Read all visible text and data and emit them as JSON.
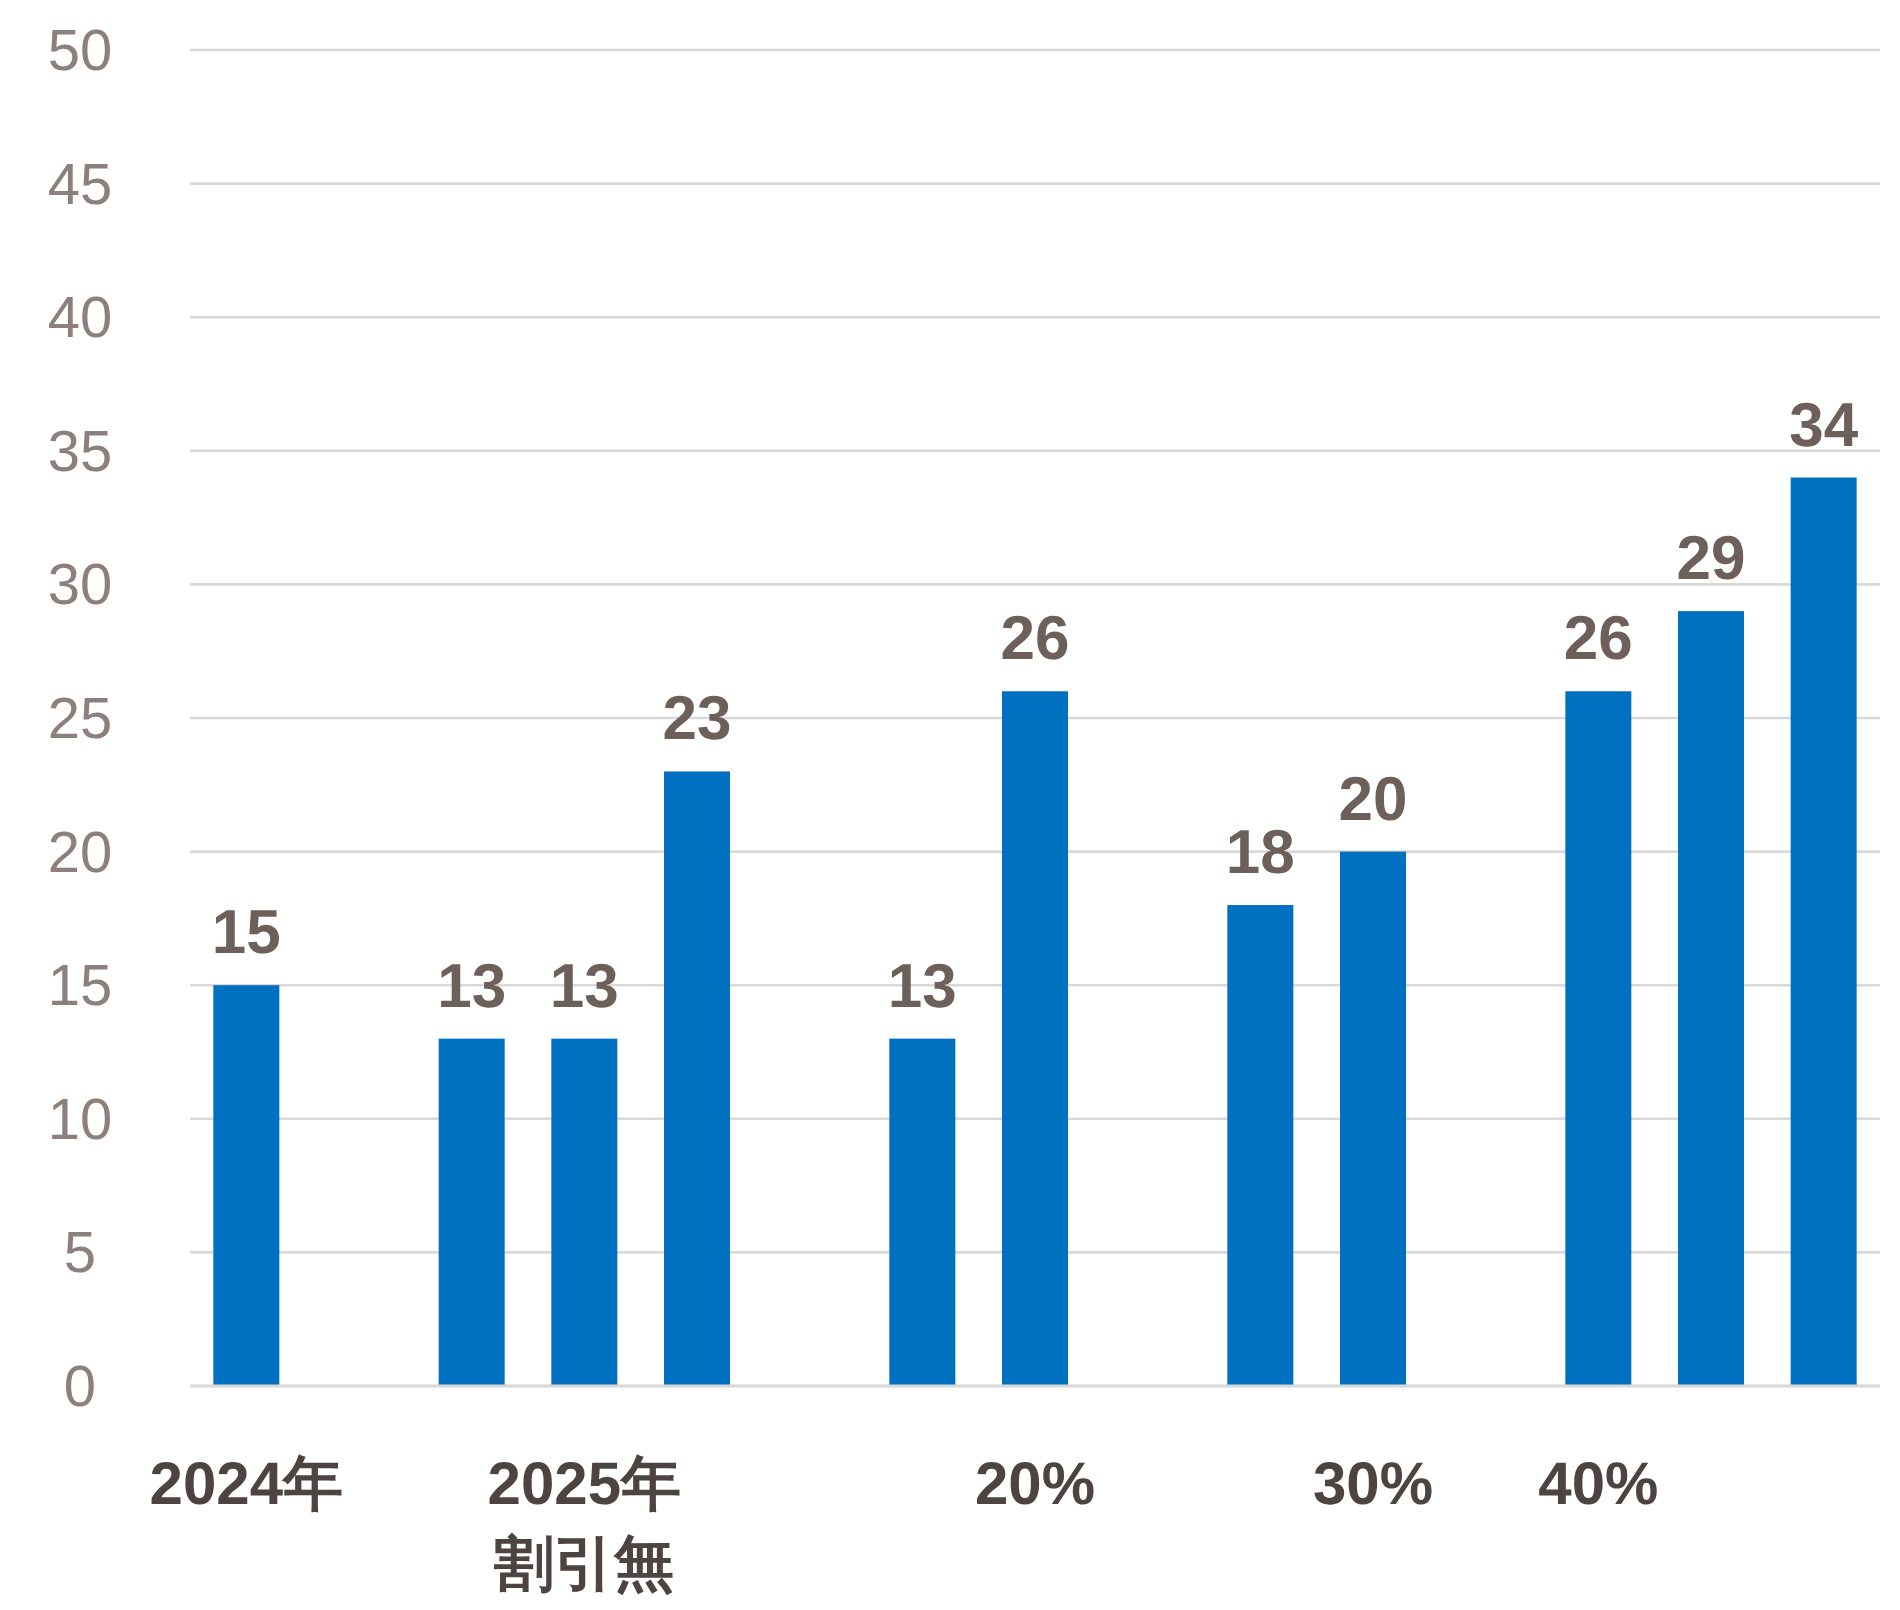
{
  "chart_data": {
    "type": "bar",
    "categories": [
      "2024年",
      null,
      null,
      "2025年割引無",
      null,
      null,
      null,
      "20%",
      null,
      null,
      "30%",
      null,
      "40%",
      null,
      null
    ],
    "values": [
      15,
      null,
      13,
      13,
      23,
      null,
      13,
      26,
      null,
      18,
      20,
      null,
      26,
      29,
      34
    ],
    "color": "#0070c0",
    "ylim": [
      0,
      50
    ],
    "yticks": [
      0,
      5,
      10,
      15,
      20,
      25,
      30,
      35,
      40,
      45,
      50
    ],
    "grid": "y",
    "data_labels": true
  }
}
